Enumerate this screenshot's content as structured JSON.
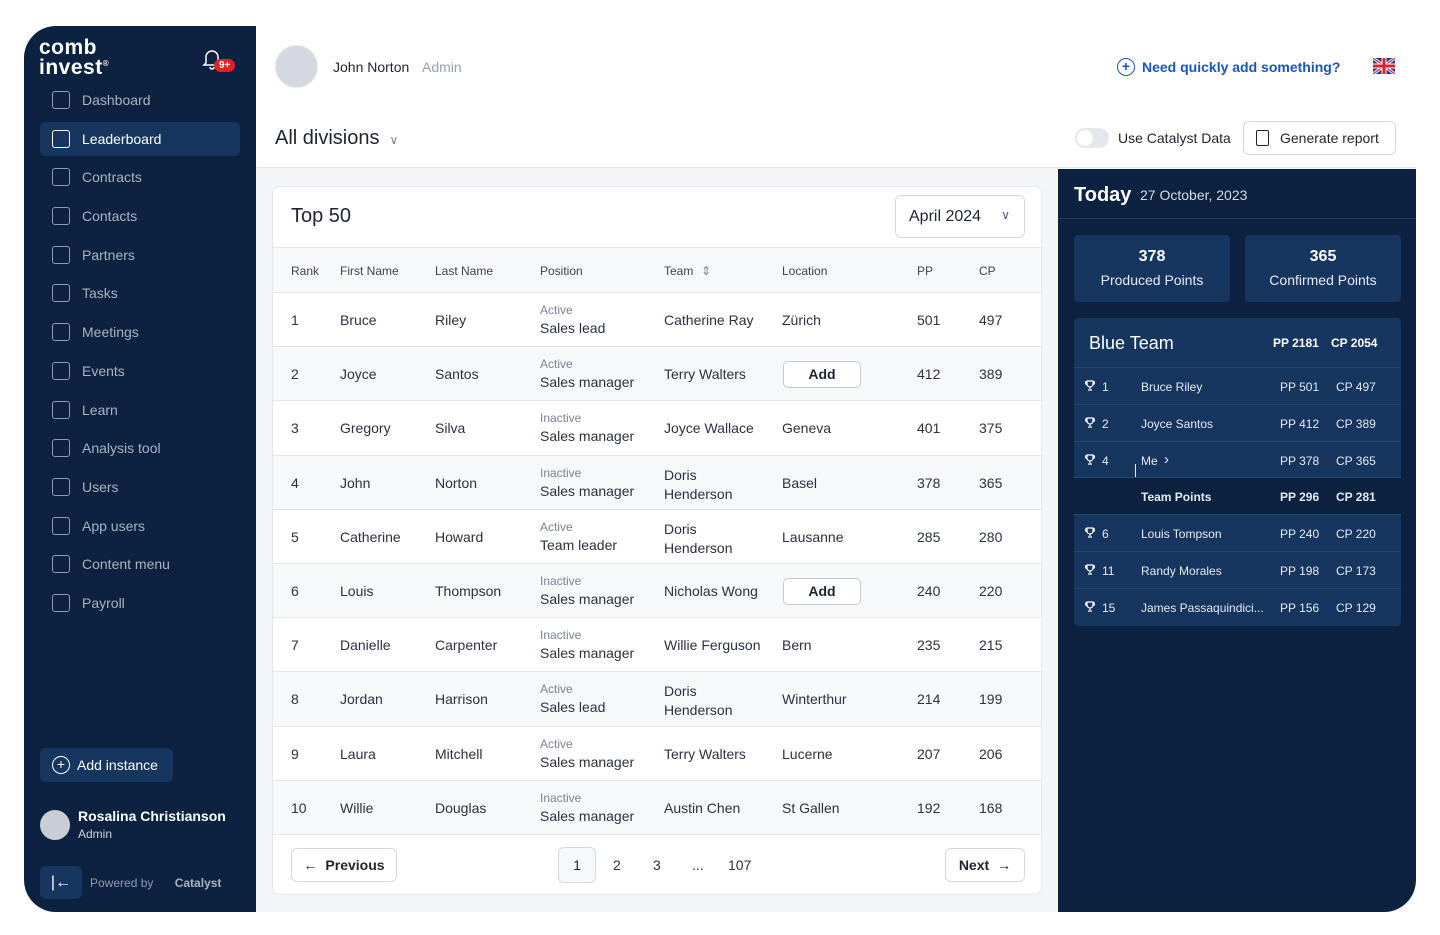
{
  "app": {
    "logo_line1": "comb",
    "logo_line2": "invest",
    "notifications": "9+"
  },
  "sidebar": {
    "items": [
      {
        "label": "Dashboard",
        "icon": "dashboard-icon"
      },
      {
        "label": "Leaderboard",
        "icon": "trophy-icon",
        "active": true
      },
      {
        "label": "Contracts",
        "icon": "contracts-icon"
      },
      {
        "label": "Contacts",
        "icon": "contacts-icon"
      },
      {
        "label": "Partners",
        "icon": "handshake-icon"
      },
      {
        "label": "Tasks",
        "icon": "tasks-icon"
      },
      {
        "label": "Meetings",
        "icon": "calendar-icon"
      },
      {
        "label": "Events",
        "icon": "list-icon"
      },
      {
        "label": "Learn",
        "icon": "book-icon"
      },
      {
        "label": "Analysis tool",
        "icon": "chart-icon"
      },
      {
        "label": "Users",
        "icon": "users-icon"
      },
      {
        "label": "App users",
        "icon": "phone-icon"
      },
      {
        "label": "Content menu",
        "icon": "pen-icon"
      },
      {
        "label": "Payroll",
        "icon": "payroll-icon"
      }
    ],
    "add_instance": "Add instance",
    "user": {
      "name": "Rosalina Christianson",
      "role": "Admin"
    },
    "powered_by": "Powered by",
    "powered_brand": "Catalyst"
  },
  "header": {
    "user_name": "John Norton",
    "user_role": "Admin",
    "quick_add": "Need quickly add something?",
    "division": "All divisions",
    "toggle_label": "Use Catalyst Data",
    "generate_report": "Generate report"
  },
  "table": {
    "title": "Top 50",
    "month": "April 2024",
    "columns": [
      "Rank",
      "First Name",
      "Last Name",
      "Position",
      "Team",
      "Location",
      "PP",
      "CP"
    ],
    "rows": [
      {
        "rank": "1",
        "first": "Bruce",
        "last": "Riley",
        "status": "Active",
        "position": "Sales lead",
        "team": "Catherine Ray",
        "location": "Zürich",
        "pp": "501",
        "cp": "497"
      },
      {
        "rank": "2",
        "first": "Joyce",
        "last": "Santos",
        "status": "Active",
        "position": "Sales manager",
        "team": "Terry Walters",
        "location": "",
        "add": "Add",
        "pp": "412",
        "cp": "389"
      },
      {
        "rank": "3",
        "first": "Gregory",
        "last": "Silva",
        "status": "Inactive",
        "position": "Sales manager",
        "team": "Joyce Wallace",
        "location": "Geneva",
        "pp": "401",
        "cp": "375"
      },
      {
        "rank": "4",
        "first": "John",
        "last": "Norton",
        "status": "Inactive",
        "position": "Sales manager",
        "team": "Doris",
        "team2": "Henderson",
        "location": "Basel",
        "pp": "378",
        "cp": "365"
      },
      {
        "rank": "5",
        "first": "Catherine",
        "last": "Howard",
        "status": "Active",
        "position": "Team leader",
        "team": "Doris",
        "team2": "Henderson",
        "location": "Lausanne",
        "pp": "285",
        "cp": "280"
      },
      {
        "rank": "6",
        "first": "Louis",
        "last": "Thompson",
        "status": "Inactive",
        "position": "Sales manager",
        "team": "Nicholas Wong",
        "location": "",
        "add": "Add",
        "pp": "240",
        "cp": "220"
      },
      {
        "rank": "7",
        "first": "Danielle",
        "last": "Carpenter",
        "status": "Inactive",
        "position": "Sales manager",
        "team": "Willie Ferguson",
        "location": "Bern",
        "pp": "235",
        "cp": "215"
      },
      {
        "rank": "8",
        "first": "Jordan",
        "last": "Harrison",
        "status": "Active",
        "position": "Sales lead",
        "team": "Doris",
        "team2": "Henderson",
        "location": "Winterthur",
        "pp": "214",
        "cp": "199"
      },
      {
        "rank": "9",
        "first": "Laura",
        "last": "Mitchell",
        "status": "Active",
        "position": "Sales manager",
        "team": "Terry Walters",
        "location": "Lucerne",
        "pp": "207",
        "cp": "206"
      },
      {
        "rank": "10",
        "first": "Willie",
        "last": "Douglas",
        "status": "Inactive",
        "position": "Sales manager",
        "team": "Austin Chen",
        "location": "St Gallen",
        "pp": "192",
        "cp": "168"
      }
    ],
    "pager": {
      "previous": "Previous",
      "next": "Next",
      "pages": [
        "1",
        "2",
        "3",
        "...",
        "107"
      ],
      "current": "1"
    }
  },
  "today": {
    "title": "Today",
    "date": "27 October, 2023",
    "produced_value": "378",
    "produced_label": "Produced Points",
    "confirmed_value": "365",
    "confirmed_label": "Confirmed Points",
    "team": {
      "name": "Blue Team",
      "pp": "PP 2181",
      "cp": "CP 2054",
      "rows": [
        {
          "rank": "1",
          "name": "Bruce Riley",
          "pp": "PP 501",
          "cp": "CP 497"
        },
        {
          "rank": "2",
          "name": "Joyce Santos",
          "pp": "PP 412",
          "cp": "CP 389"
        },
        {
          "rank": "4",
          "name": "Me",
          "pp": "PP 378",
          "cp": "CP 365"
        },
        {
          "rank": "",
          "name": "Team Points",
          "pp": "PP 296",
          "cp": "CP 281"
        },
        {
          "rank": "6",
          "name": "Louis Tompson",
          "pp": "PP 240",
          "cp": "CP 220"
        },
        {
          "rank": "11",
          "name": "Randy Morales",
          "pp": "PP 198",
          "cp": "CP 173"
        },
        {
          "rank": "15",
          "name": "James Passaquindici...",
          "pp": "PP 156",
          "cp": "CP 129"
        }
      ]
    }
  }
}
